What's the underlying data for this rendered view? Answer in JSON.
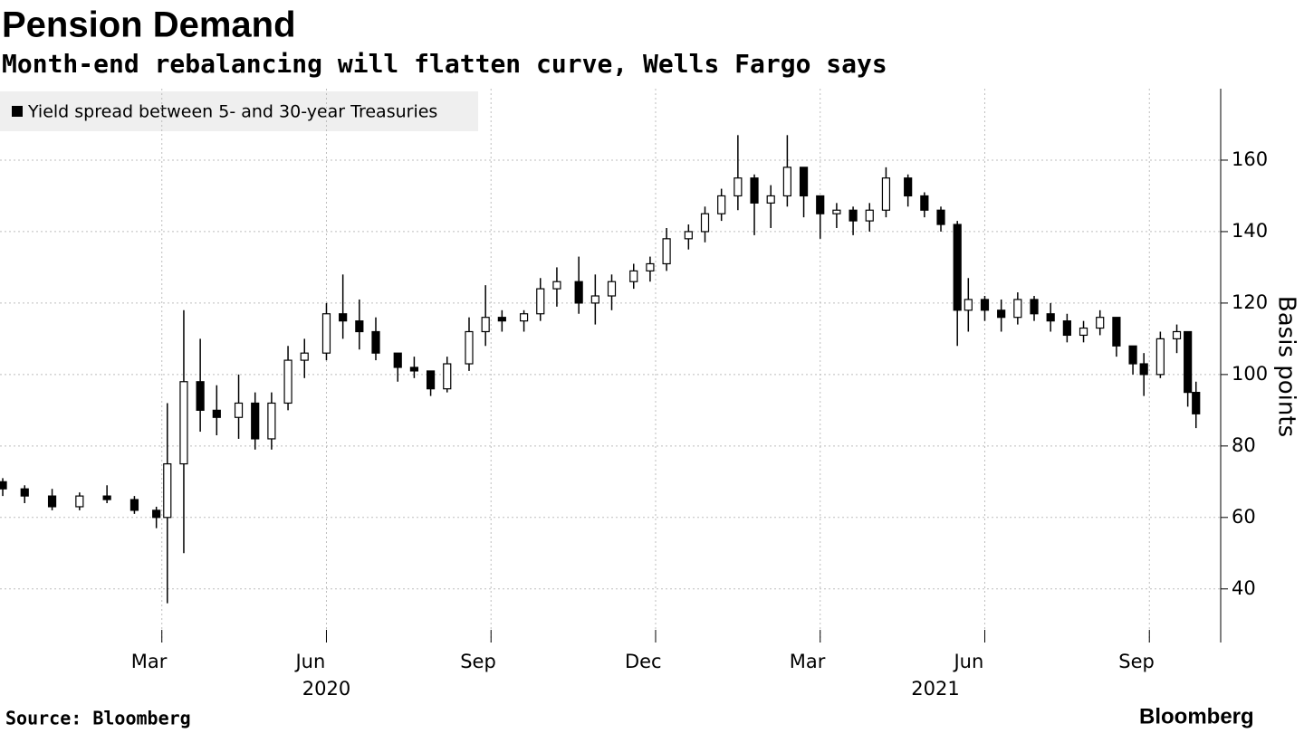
{
  "chart_data": {
    "type": "candlestick",
    "title": "Pension Demand",
    "subtitle": "Month-end rebalancing will flatten curve, Wells Fargo says",
    "y_axis_label": "Basis points",
    "source": "Source: Bloomberg",
    "brand": "Bloomberg",
    "grid": true,
    "series": [
      {
        "name": "Yield spread between 5- and 30-year Treasuries",
        "color": "#000000",
        "x": [
          -0.9,
          -0.5,
          0,
          0.5,
          1,
          1.5,
          1.9,
          2.1,
          2.4,
          2.7,
          3,
          3.4,
          3.7,
          4,
          4.3,
          4.6,
          5,
          5.3,
          5.6,
          5.9,
          6.3,
          6.6,
          6.9,
          7.2,
          7.6,
          7.9,
          8.2,
          8.6,
          8.9,
          9.2,
          9.6,
          9.9,
          10.2,
          10.6,
          10.9,
          11.2,
          11.6,
          11.9,
          12.2,
          12.5,
          12.8,
          13.1,
          13.4,
          13.7,
          14,
          14.3,
          14.6,
          14.9,
          15.2,
          15.6,
          15.9,
          16.2,
          16.5,
          16.7,
          17,
          17.3,
          17.6,
          17.9,
          18.2,
          18.5,
          18.8,
          19.1,
          19.4,
          19.7,
          19.9,
          20.2,
          20.5,
          20.7,
          20.85
        ],
        "open": [
          70,
          68,
          66,
          63,
          66,
          65,
          62,
          60,
          75,
          98,
          90,
          88,
          92,
          82,
          92,
          104,
          106,
          117,
          115,
          112,
          106,
          102,
          101,
          96,
          103,
          112,
          116,
          115,
          117,
          124,
          126,
          120,
          122,
          126,
          129,
          131,
          138,
          140,
          145,
          150,
          155,
          148,
          150,
          158,
          150,
          145,
          146,
          143,
          146,
          155,
          150,
          146,
          142,
          118,
          121,
          118,
          116,
          121,
          117,
          115,
          111,
          113,
          116,
          108,
          103,
          100,
          110,
          112,
          95
        ],
        "high": [
          71,
          69,
          68,
          67,
          69,
          66,
          63,
          92,
          118,
          110,
          97,
          100,
          95,
          95,
          108,
          110,
          120,
          128,
          121,
          116,
          106,
          105,
          101,
          105,
          116,
          125,
          118,
          118,
          127,
          130,
          133,
          128,
          128,
          131,
          133,
          141,
          142,
          147,
          152,
          167,
          156,
          153,
          167,
          158,
          150,
          148,
          147,
          148,
          158,
          156,
          151,
          147,
          143,
          127,
          122,
          121,
          123,
          122,
          120,
          117,
          115,
          118,
          116,
          108,
          106,
          112,
          114,
          112,
          98
        ],
        "low": [
          66,
          64,
          62,
          62,
          64,
          61,
          57,
          36,
          50,
          84,
          83,
          82,
          79,
          79,
          90,
          99,
          104,
          110,
          107,
          104,
          98,
          99,
          94,
          95,
          101,
          108,
          112,
          112,
          115,
          119,
          117,
          114,
          118,
          124,
          126,
          129,
          135,
          137,
          143,
          146,
          139,
          141,
          147,
          144,
          138,
          141,
          139,
          140,
          144,
          147,
          144,
          140,
          108,
          112,
          115,
          112,
          114,
          115,
          112,
          109,
          109,
          111,
          105,
          100,
          94,
          99,
          106,
          91,
          85
        ],
        "close": [
          68,
          66,
          63,
          66,
          65,
          62,
          60,
          75,
          98,
          90,
          88,
          92,
          82,
          92,
          104,
          106,
          117,
          115,
          112,
          106,
          102,
          101,
          96,
          103,
          112,
          116,
          115,
          117,
          124,
          126,
          120,
          122,
          126,
          129,
          131,
          138,
          140,
          145,
          150,
          155,
          148,
          150,
          158,
          150,
          145,
          146,
          143,
          146,
          155,
          150,
          146,
          142,
          118,
          121,
          118,
          116,
          121,
          117,
          115,
          111,
          113,
          116,
          108,
          103,
          100,
          110,
          112,
          95,
          89
        ]
      }
    ],
    "xlim": [
      -0.95,
      21.3
    ],
    "xticks": [
      {
        "value": 2,
        "label": "Mar"
      },
      {
        "value": 5,
        "label": "Jun"
      },
      {
        "value": 8,
        "label": "Sep"
      },
      {
        "value": 11,
        "label": "Dec"
      },
      {
        "value": 14,
        "label": "Mar"
      },
      {
        "value": 17,
        "label": "Jun"
      },
      {
        "value": 20,
        "label": "Sep"
      }
    ],
    "xgroups": [
      {
        "value": 5,
        "label": "2020"
      },
      {
        "value": 16.1,
        "label": "2021"
      }
    ],
    "ylim": [
      25,
      180
    ],
    "yticks": [
      40,
      60,
      80,
      100,
      120,
      140,
      160
    ]
  }
}
